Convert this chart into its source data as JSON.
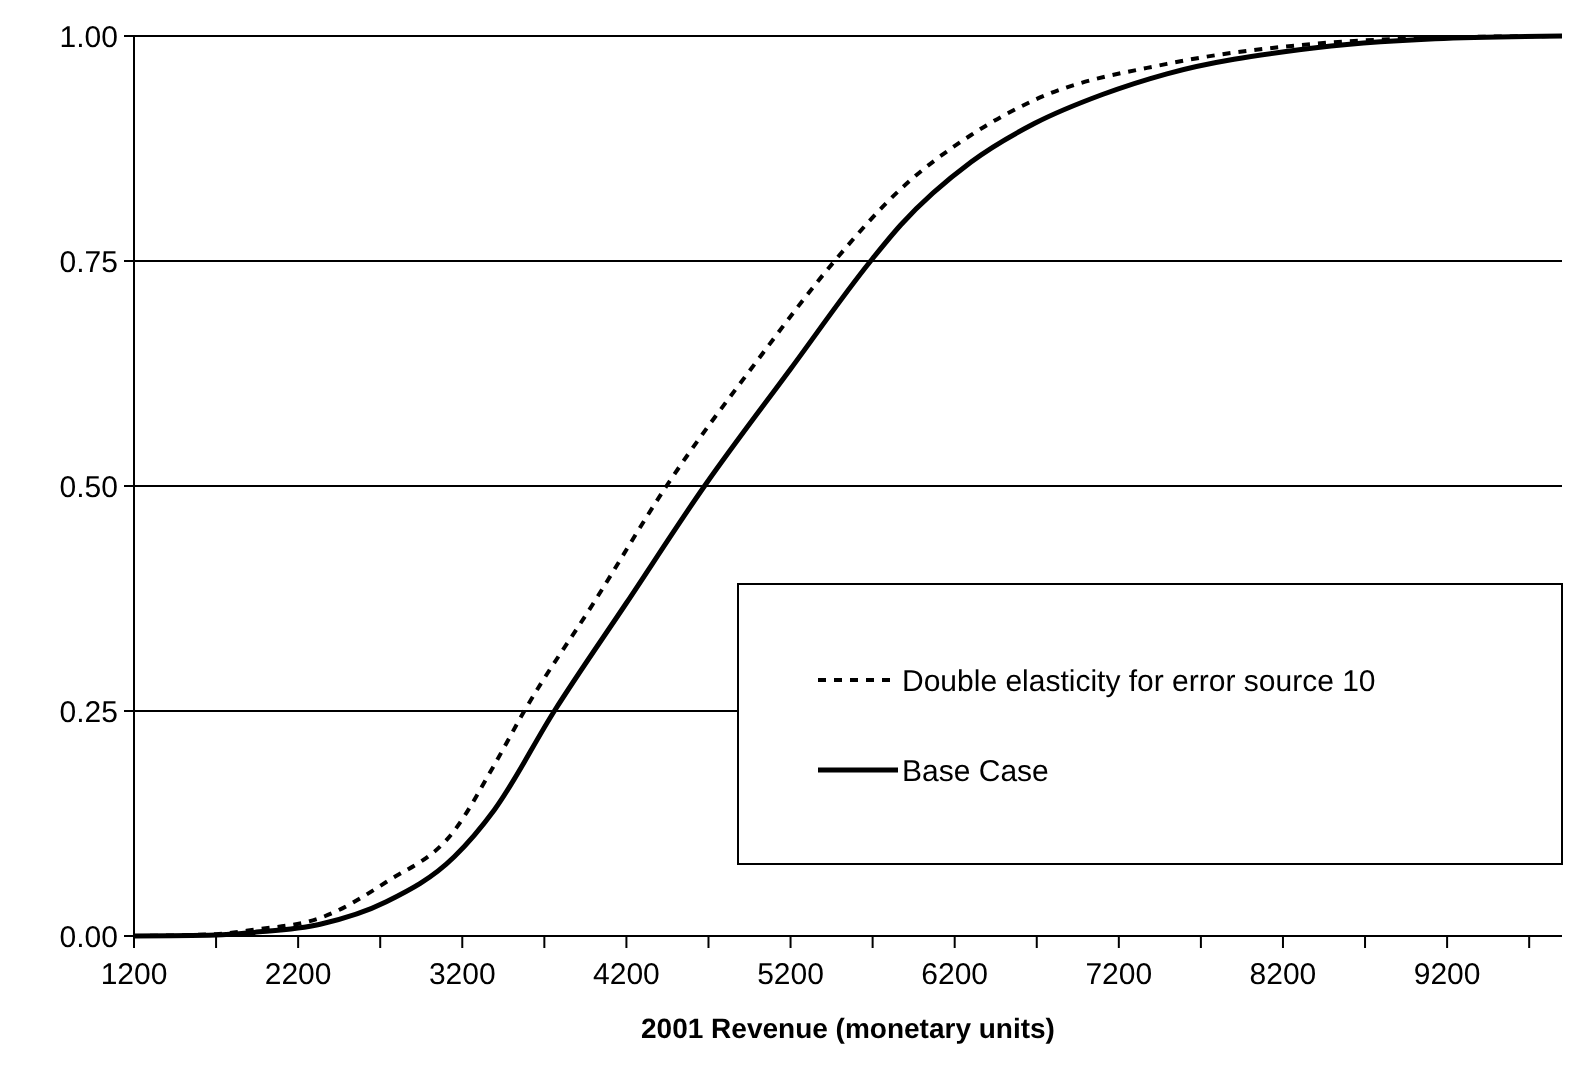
{
  "chart_data": {
    "type": "line",
    "xlabel": "2001 Revenue (monetary units)",
    "xlim": [
      1200,
      9900
    ],
    "xticks": [
      1200,
      {
        "value": 1700,
        "label": null
      },
      2200,
      {
        "value": 2700,
        "label": null
      },
      3200,
      {
        "value": 3700,
        "label": null
      },
      4200,
      {
        "value": 4700,
        "label": null
      },
      5200,
      {
        "value": 5700,
        "label": null
      },
      6200,
      {
        "value": 6700,
        "label": null
      },
      7200,
      {
        "value": 7700,
        "label": null
      },
      8200,
      {
        "value": 8700,
        "label": null
      },
      9200,
      {
        "value": 9700,
        "label": null
      }
    ],
    "ylim": [
      0,
      1
    ],
    "yticks": [
      {
        "value": 0,
        "label": "0.00"
      },
      {
        "value": 0.25,
        "label": "0.25"
      },
      {
        "value": 0.5,
        "label": "0.50"
      },
      {
        "value": 0.75,
        "label": "0.75"
      },
      {
        "value": 1,
        "label": "1.00"
      }
    ],
    "grid": "y",
    "legend": "bottom right",
    "marker": "none",
    "series": [
      {
        "name": "Double elasticity for error source 10",
        "color": "#000000",
        "line_style": "dashed",
        "x": [
          1200,
          1700,
          1932,
          2334,
          2737,
          3151,
          3395,
          3578,
          4000,
          4444,
          5000,
          5468,
          5871,
          6300,
          6688,
          7493,
          8310,
          9127,
          9900
        ],
        "values": [
          0,
          0.002,
          0.007,
          0.02,
          0.06,
          0.117,
          0.19,
          0.25,
          0.37,
          0.5,
          0.64,
          0.75,
          0.83,
          0.89,
          0.929,
          0.969,
          0.99,
          0.998,
          1
        ]
      },
      {
        "name": "Base Case",
        "color": "#000000",
        "line_style": "solid",
        "x": [
          1200,
          1700,
          1932,
          2334,
          2737,
          3151,
          3395,
          3761,
          4200,
          4676,
          5200,
          5688,
          5871,
          6300,
          6688,
          7100,
          7493,
          8310,
          9127,
          9900
        ],
        "values": [
          0,
          0.001,
          0.004,
          0.013,
          0.038,
          0.088,
          0.14,
          0.25,
          0.37,
          0.5,
          0.63,
          0.75,
          0.79,
          0.86,
          0.903,
          0.935,
          0.958,
          0.985,
          0.997,
          1
        ]
      }
    ]
  }
}
